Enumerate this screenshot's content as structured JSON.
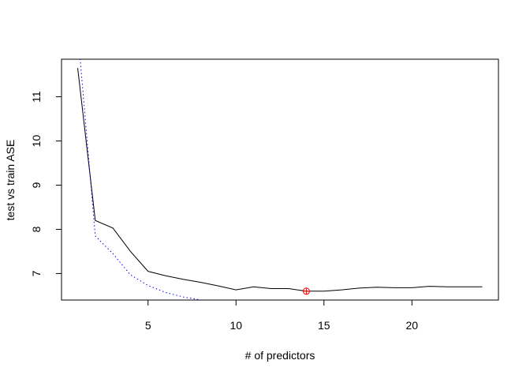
{
  "chart_data": {
    "type": "line",
    "title": "",
    "xlabel": "# of predictors",
    "ylabel": "test vs train ASE",
    "xlim": [
      0.08,
      24.92
    ],
    "ylim": [
      6.4,
      11.85
    ],
    "x_ticks": [
      5,
      10,
      15,
      20
    ],
    "y_ticks": [
      7,
      8,
      9,
      10,
      11
    ],
    "grid": false,
    "legend": "none",
    "series": [
      {
        "role": "test",
        "style": "solid",
        "color": "#000000",
        "x": [
          1,
          2,
          3,
          4,
          5,
          6,
          7,
          8,
          9,
          10,
          11,
          12,
          13,
          14,
          15,
          16,
          17,
          18,
          19,
          20,
          21,
          22,
          23,
          24
        ],
        "y": [
          11.65,
          8.2,
          8.03,
          7.5,
          7.05,
          6.95,
          6.87,
          6.8,
          6.72,
          6.63,
          6.7,
          6.66,
          6.66,
          6.6,
          6.6,
          6.63,
          6.67,
          6.69,
          6.68,
          6.68,
          6.71,
          6.7,
          6.7,
          6.7
        ]
      },
      {
        "role": "train",
        "style": "dotted",
        "color": "#0000ff",
        "x": [
          1,
          2,
          3,
          4,
          5,
          6,
          7,
          8
        ],
        "y": [
          12.5,
          7.85,
          7.45,
          6.97,
          6.73,
          6.57,
          6.47,
          6.4
        ]
      }
    ],
    "highlight": {
      "x": 14,
      "y": 6.6,
      "color": "#ff0000",
      "marker": "circle-plus"
    }
  }
}
